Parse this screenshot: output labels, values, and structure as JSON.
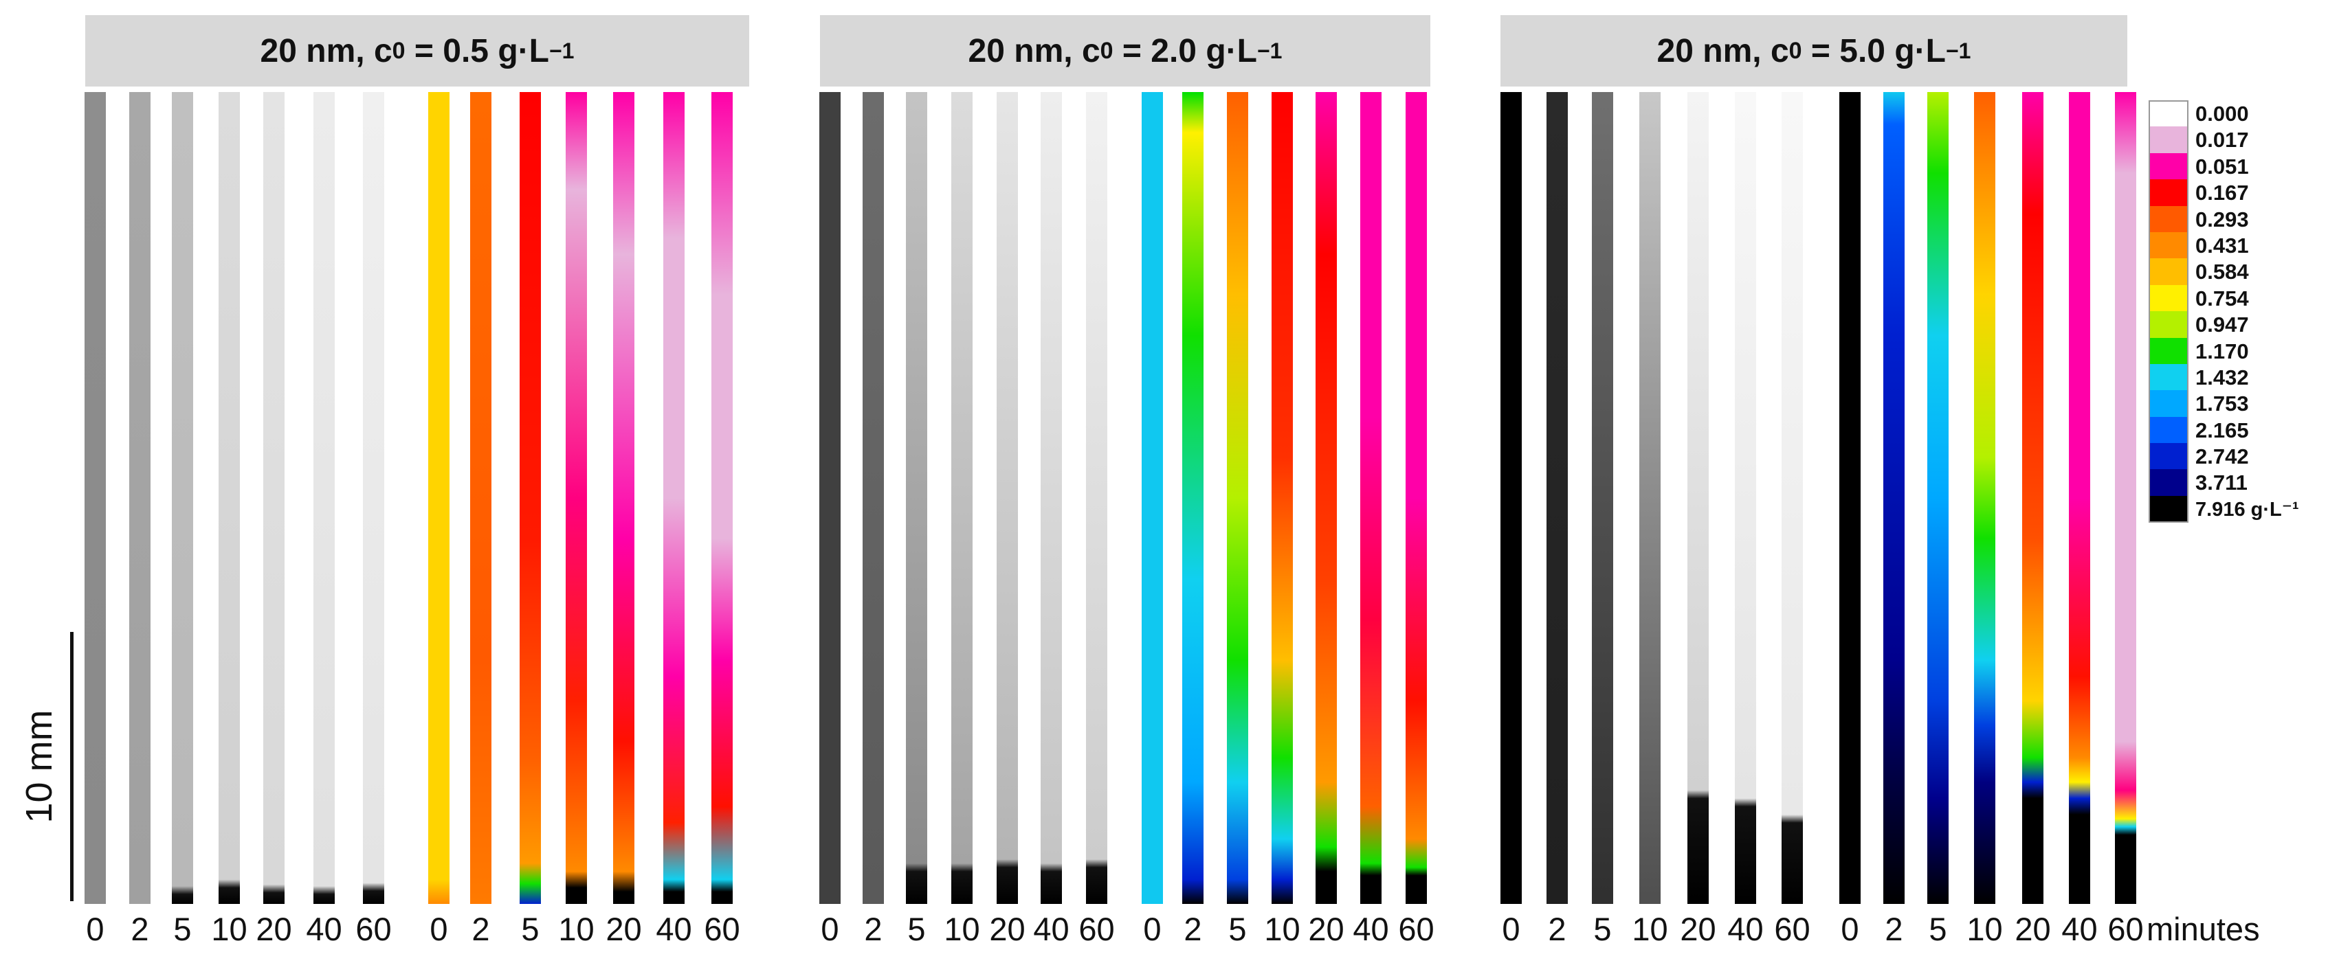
{
  "panels": [
    {
      "title_prefix": "20 nm, c",
      "title_sub": "0",
      "title_value": " = 0.5 g·L",
      "title_sup": "−1"
    },
    {
      "title_prefix": "20 nm, c",
      "title_sub": "0",
      "title_value": " = 2.0 g·L",
      "title_sup": "−1"
    },
    {
      "title_prefix": "20 nm, c",
      "title_sub": "0",
      "title_value": " = 5.0 g·L",
      "title_sup": "−1"
    }
  ],
  "time_labels": [
    "0",
    "2",
    "5",
    "10",
    "20",
    "40",
    "60"
  ],
  "time_unit": "minutes",
  "scale_bar_label": "10 mm",
  "legend": {
    "values": [
      "0.000",
      "0.017",
      "0.051",
      "0.167",
      "0.293",
      "0.431",
      "0.584",
      "0.754",
      "0.947",
      "1.170",
      "1.432",
      "1.753",
      "2.165",
      "2.742",
      "3.711",
      "7.916 g·L⁻¹"
    ],
    "colors": [
      "#ffffff",
      "#e8b4dc",
      "#ff00a8",
      "#ff0000",
      "#ff5a00",
      "#ff8a00",
      "#ffbe00",
      "#fff000",
      "#b4f000",
      "#10e000",
      "#10d0f0",
      "#00a8ff",
      "#0060ff",
      "#0020d0",
      "#00008c",
      "#000000"
    ]
  },
  "gray_series": [
    [
      {
        "top": "#8e8e8e",
        "mid": "#8a8a8a",
        "sediment": 0
      },
      {
        "top": "#a8a8a8",
        "mid": "#a0a0a0",
        "sediment": 0
      },
      {
        "top": "#c0c0c0",
        "mid": "#b8b8b8",
        "sediment": 0.012
      },
      {
        "top": "#dcdcdc",
        "mid": "#d0d0d0",
        "sediment": 0.02
      },
      {
        "top": "#e4e4e4",
        "mid": "#d8d8d8",
        "sediment": 0.014
      },
      {
        "top": "#ececec",
        "mid": "#e0e0e0",
        "sediment": 0.012
      },
      {
        "top": "#f0f0f0",
        "mid": "#e4e4e4",
        "sediment": 0.016
      }
    ],
    [
      {
        "top": "#404040",
        "mid": "#404040",
        "sediment": 0
      },
      {
        "top": "#6c6c6c",
        "mid": "#5a5a5a",
        "sediment": 0
      },
      {
        "top": "#c4c4c4",
        "mid": "#8a8a8a",
        "sediment": 0.04
      },
      {
        "top": "#dcdcdc",
        "mid": "#a4a4a4",
        "sediment": 0.04
      },
      {
        "top": "#e6e6e6",
        "mid": "#b4b4b4",
        "sediment": 0.045
      },
      {
        "top": "#eeeeee",
        "mid": "#c4c4c4",
        "sediment": 0.04
      },
      {
        "top": "#f2f2f2",
        "mid": "#cccccc",
        "sediment": 0.045
      }
    ],
    [
      {
        "top": "#000000",
        "mid": "#000000",
        "sediment": 0
      },
      {
        "top": "#2a2a2a",
        "mid": "#202020",
        "sediment": 0
      },
      {
        "top": "#707070",
        "mid": "#303030",
        "sediment": 0
      },
      {
        "top": "#c8c8c8",
        "mid": "#505050",
        "sediment": 0
      },
      {
        "top": "#f4f4f4",
        "mid": "#d0d0d0",
        "sediment": 0.13
      },
      {
        "top": "#f8f8f8",
        "mid": "#e4e4e4",
        "sediment": 0.12
      },
      {
        "top": "#f8f8f8",
        "mid": "#e8e8e8",
        "sediment": 0.1
      }
    ]
  ],
  "color_series": [
    [
      {
        "stops": [
          [
            "#ffd400",
            0
          ],
          [
            "#ffd400",
            0.97
          ],
          [
            "#ff8a00",
            1
          ]
        ]
      },
      {
        "stops": [
          [
            "#ff6a00",
            0
          ],
          [
            "#ff5a00",
            0.7
          ],
          [
            "#ff7a00",
            1
          ]
        ]
      },
      {
        "stops": [
          [
            "#ff0000",
            0
          ],
          [
            "#ff1a00",
            0.55
          ],
          [
            "#ff6000",
            0.82
          ],
          [
            "#ff9a00",
            0.95
          ],
          [
            "#10e000",
            0.975
          ],
          [
            "#0020d0",
            1
          ]
        ]
      },
      {
        "stops": [
          [
            "#ff00a0",
            0
          ],
          [
            "#e8b4dc",
            0.12
          ],
          [
            "#ff0080",
            0.5
          ],
          [
            "#ff2000",
            0.75
          ],
          [
            "#ff8a00",
            0.96
          ],
          [
            "#000000",
            0.98
          ],
          [
            "#000000",
            1
          ]
        ]
      },
      {
        "stops": [
          [
            "#ff00a8",
            0
          ],
          [
            "#e8b4dc",
            0.2
          ],
          [
            "#ff00a8",
            0.55
          ],
          [
            "#ff1000",
            0.8
          ],
          [
            "#ff8a00",
            0.96
          ],
          [
            "#000000",
            0.985
          ],
          [
            "#000000",
            1
          ]
        ]
      },
      {
        "stops": [
          [
            "#ff00a8",
            0
          ],
          [
            "#e8b4dc",
            0.18
          ],
          [
            "#e8b4dc",
            0.5
          ],
          [
            "#ff00a8",
            0.72
          ],
          [
            "#ff2000",
            0.9
          ],
          [
            "#10d0f0",
            0.97
          ],
          [
            "#000000",
            0.985
          ],
          [
            "#000000",
            1
          ]
        ]
      },
      {
        "stops": [
          [
            "#ff00a8",
            0
          ],
          [
            "#e8b4dc",
            0.25
          ],
          [
            "#e8b4dc",
            0.55
          ],
          [
            "#ff00a8",
            0.7
          ],
          [
            "#ff1000",
            0.88
          ],
          [
            "#10d0f0",
            0.97
          ],
          [
            "#000000",
            0.985
          ],
          [
            "#000000",
            1
          ]
        ]
      }
    ],
    [
      {
        "stops": [
          [
            "#10c8f0",
            0
          ],
          [
            "#10c8f0",
            1
          ]
        ]
      },
      {
        "stops": [
          [
            "#00e000",
            0
          ],
          [
            "#fff000",
            0.05
          ],
          [
            "#10e000",
            0.3
          ],
          [
            "#10d0f0",
            0.6
          ],
          [
            "#00a8ff",
            0.85
          ],
          [
            "#0020d0",
            0.97
          ],
          [
            "#000000",
            1
          ]
        ]
      },
      {
        "stops": [
          [
            "#ff6000",
            0
          ],
          [
            "#ffbe00",
            0.25
          ],
          [
            "#b4f000",
            0.5
          ],
          [
            "#10e000",
            0.7
          ],
          [
            "#10d0f0",
            0.85
          ],
          [
            "#0040e0",
            0.97
          ],
          [
            "#000000",
            1
          ]
        ]
      },
      {
        "stops": [
          [
            "#ff0000",
            0
          ],
          [
            "#ff3000",
            0.45
          ],
          [
            "#ffbe00",
            0.7
          ],
          [
            "#10e000",
            0.82
          ],
          [
            "#10d0f0",
            0.92
          ],
          [
            "#0020d0",
            0.97
          ],
          [
            "#000000",
            1
          ]
        ]
      },
      {
        "stops": [
          [
            "#ff00a8",
            0
          ],
          [
            "#ff0000",
            0.2
          ],
          [
            "#ff4000",
            0.6
          ],
          [
            "#ff9a00",
            0.85
          ],
          [
            "#10e000",
            0.93
          ],
          [
            "#000000",
            0.96
          ],
          [
            "#000000",
            1
          ]
        ]
      },
      {
        "stops": [
          [
            "#ff00a8",
            0
          ],
          [
            "#ff00a8",
            0.4
          ],
          [
            "#ff0040",
            0.65
          ],
          [
            "#ff6000",
            0.88
          ],
          [
            "#10e000",
            0.95
          ],
          [
            "#000000",
            0.965
          ],
          [
            "#000000",
            1
          ]
        ]
      },
      {
        "stops": [
          [
            "#ff00a8",
            0
          ],
          [
            "#ff00a8",
            0.5
          ],
          [
            "#ff1000",
            0.75
          ],
          [
            "#ff8a00",
            0.92
          ],
          [
            "#10e000",
            0.955
          ],
          [
            "#000000",
            0.965
          ],
          [
            "#000000",
            1
          ]
        ]
      }
    ],
    [
      {
        "stops": [
          [
            "#000000",
            0
          ],
          [
            "#000000",
            1
          ]
        ]
      },
      {
        "stops": [
          [
            "#10c8f0",
            0
          ],
          [
            "#0060ff",
            0.04
          ],
          [
            "#0020d0",
            0.3
          ],
          [
            "#00008c",
            0.7
          ],
          [
            "#000040",
            0.85
          ],
          [
            "#000000",
            1
          ]
        ]
      },
      {
        "stops": [
          [
            "#b4f000",
            0
          ],
          [
            "#10e000",
            0.1
          ],
          [
            "#10d0f0",
            0.3
          ],
          [
            "#00a8ff",
            0.5
          ],
          [
            "#0040e0",
            0.75
          ],
          [
            "#00008c",
            0.87
          ],
          [
            "#000000",
            1
          ]
        ]
      },
      {
        "stops": [
          [
            "#ff6000",
            0
          ],
          [
            "#ffd400",
            0.25
          ],
          [
            "#b4f000",
            0.45
          ],
          [
            "#10e000",
            0.55
          ],
          [
            "#10d0f0",
            0.7
          ],
          [
            "#0040e0",
            0.78
          ],
          [
            "#000080",
            0.85
          ],
          [
            "#000000",
            1
          ]
        ]
      },
      {
        "stops": [
          [
            "#ff00a8",
            0
          ],
          [
            "#ff0000",
            0.15
          ],
          [
            "#ff5000",
            0.55
          ],
          [
            "#ffd400",
            0.75
          ],
          [
            "#10e000",
            0.82
          ],
          [
            "#0020d0",
            0.85
          ],
          [
            "#000000",
            0.87
          ],
          [
            "#000000",
            1
          ]
        ]
      },
      {
        "stops": [
          [
            "#ff00a8",
            0
          ],
          [
            "#ff00a8",
            0.5
          ],
          [
            "#ff1000",
            0.72
          ],
          [
            "#ff8a00",
            0.82
          ],
          [
            "#fff000",
            0.85
          ],
          [
            "#0020d0",
            0.87
          ],
          [
            "#000000",
            0.89
          ],
          [
            "#000000",
            1
          ]
        ]
      },
      {
        "stops": [
          [
            "#ff00a8",
            0
          ],
          [
            "#e8b4dc",
            0.1
          ],
          [
            "#e8b4dc",
            0.8
          ],
          [
            "#ff0080",
            0.86
          ],
          [
            "#fff000",
            0.895
          ],
          [
            "#10d0f0",
            0.905
          ],
          [
            "#000000",
            0.915
          ],
          [
            "#000000",
            1
          ]
        ]
      }
    ]
  ]
}
